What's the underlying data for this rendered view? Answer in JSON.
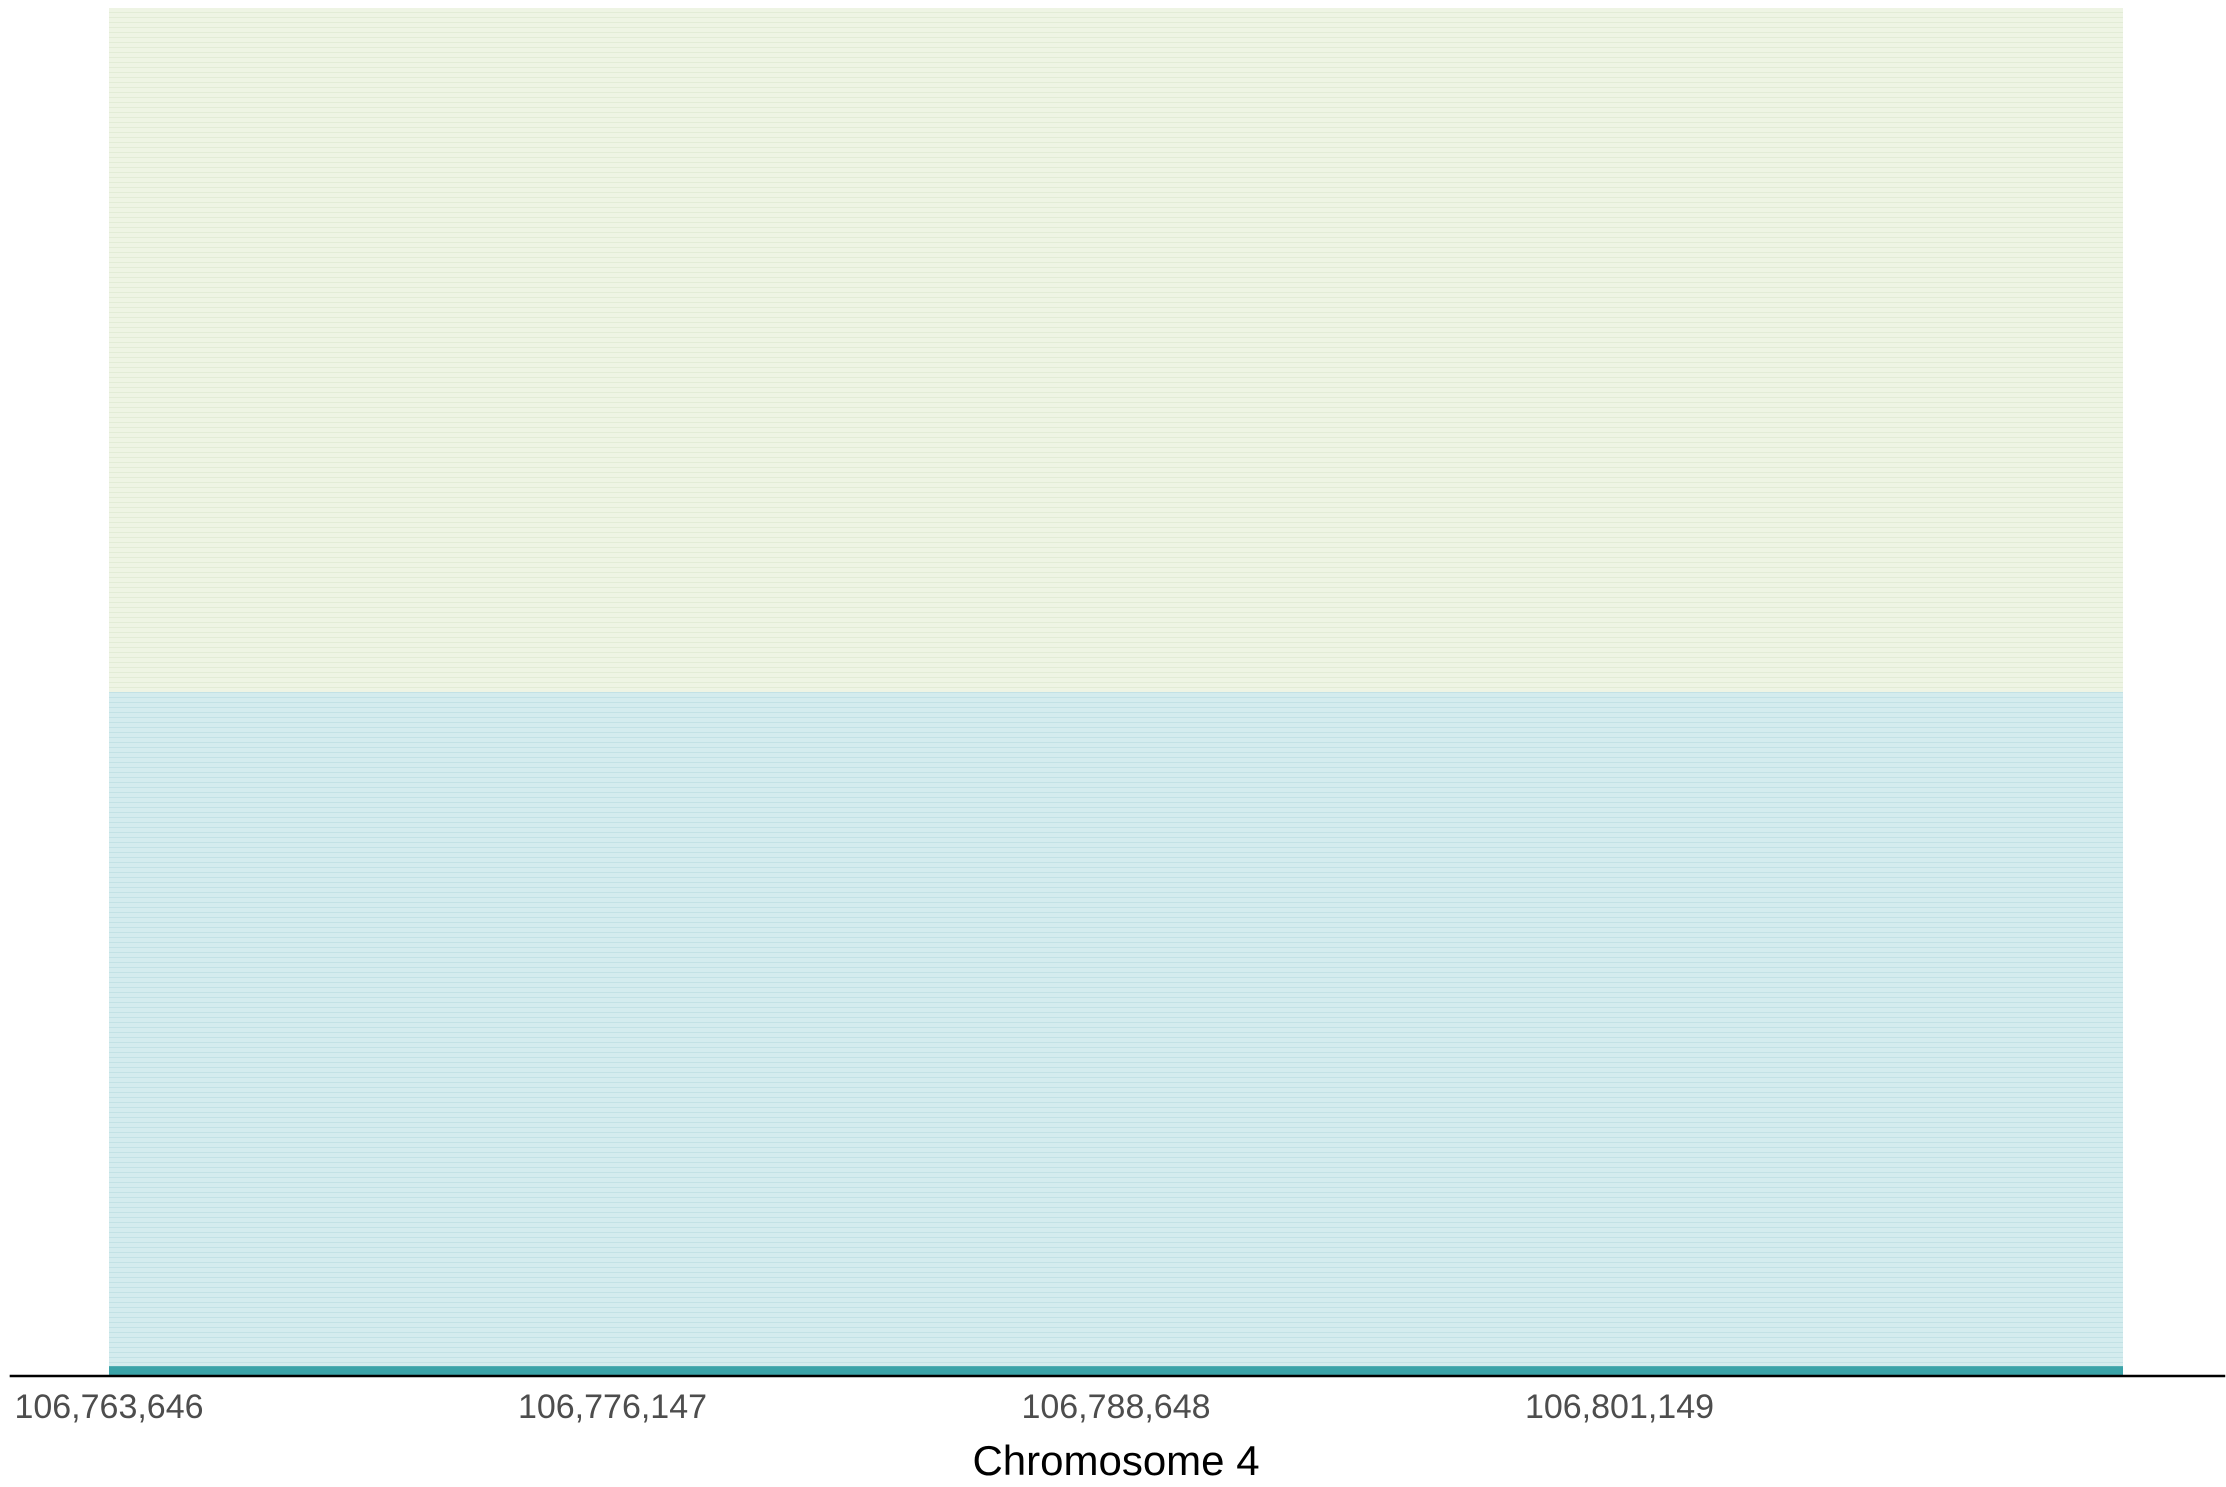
{
  "chart_data": {
    "type": "area",
    "xlabel": "Chromosome 4",
    "ylabel": "",
    "title": "",
    "xlim": [
      106763646,
      106813650
    ],
    "ylim": [
      0,
      1
    ],
    "x_ticks": [
      106763646,
      106776147,
      106788648,
      106801149
    ],
    "x_tick_labels": [
      "106,763,646",
      "106,776,147",
      "106,788,648",
      "106,801,149"
    ],
    "x_axis_extent": [
      106761180,
      106816188
    ],
    "grid": false,
    "legend": "none",
    "bands": [
      {
        "y0": 0.5,
        "y1": 1.0,
        "color": "#eef4e4",
        "line_color": "#e2ecd6"
      },
      {
        "y0": 0.005,
        "y1": 0.5,
        "color": "#d4ecee",
        "line_color": "#c2e2e5"
      }
    ],
    "baseline": {
      "y0": 0.0,
      "y1": 0.005,
      "color": "#3aa3a8"
    },
    "axis_line_color": "#000000"
  }
}
